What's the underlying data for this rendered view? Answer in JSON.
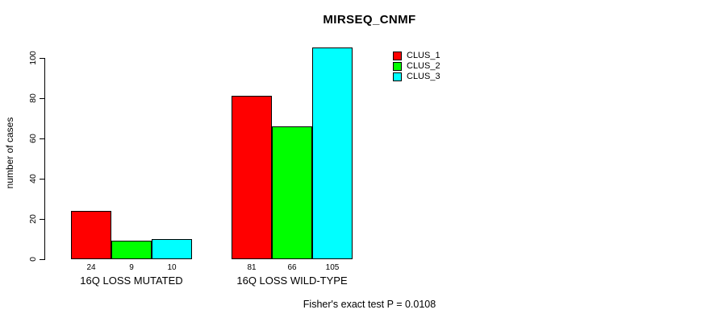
{
  "chart_data": {
    "type": "bar",
    "title": "MIRSEQ_CNMF",
    "xlabel": "",
    "ylabel": "number of cases",
    "categories": [
      "16Q LOSS MUTATED",
      "16Q LOSS WILD-TYPE"
    ],
    "series": [
      {
        "name": "CLUS_1",
        "color": "#ff0000",
        "values": [
          24,
          81
        ]
      },
      {
        "name": "CLUS_2",
        "color": "#00ff00",
        "values": [
          9,
          66
        ]
      },
      {
        "name": "CLUS_3",
        "color": "#00ffff",
        "values": [
          10,
          105
        ]
      }
    ],
    "ylim": [
      0,
      100
    ],
    "yticks": [
      0,
      20,
      40,
      60,
      80,
      100
    ],
    "grid": false,
    "show_values_under_bars": true,
    "bar_border_color": "#000000",
    "axis_color": "#000000",
    "background": "#ffffff",
    "legend": {
      "position": "inside-top-center-right",
      "entries": [
        "CLUS_1",
        "CLUS_2",
        "CLUS_3"
      ]
    },
    "annotation": "Fisher's exact test P = 0.0108"
  }
}
